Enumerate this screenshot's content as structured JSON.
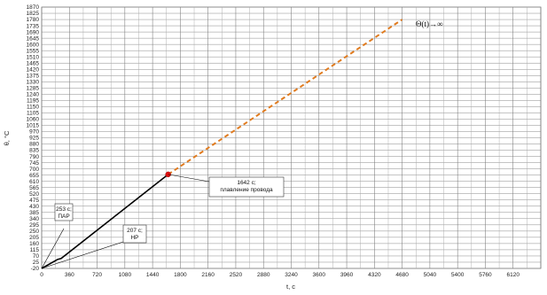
{
  "chart_data": {
    "type": "line",
    "title": "",
    "xlabel": "t, c",
    "ylabel": "θ, °C",
    "xlim": [
      0,
      6480
    ],
    "ylim": [
      -20,
      1870
    ],
    "x_ticks": [
      0,
      360,
      720,
      1080,
      1440,
      1800,
      2160,
      2520,
      2880,
      3240,
      3600,
      3960,
      4320,
      4680,
      5040,
      5400,
      5760,
      6120
    ],
    "y_ticks": [
      -20,
      25,
      70,
      115,
      160,
      205,
      250,
      295,
      340,
      385,
      430,
      475,
      520,
      565,
      610,
      655,
      700,
      745,
      790,
      835,
      880,
      925,
      970,
      1015,
      1060,
      1105,
      1150,
      1195,
      1240,
      1285,
      1330,
      1375,
      1420,
      1465,
      1510,
      1555,
      1600,
      1645,
      1690,
      1735,
      1780,
      1825,
      1870
    ],
    "grid": true,
    "series": [
      {
        "style": "solid",
        "color": "#000000",
        "x": [
          0,
          207,
          253,
          1642
        ],
        "y": [
          -20,
          45,
          52,
          660
        ]
      },
      {
        "style": "dashed",
        "color": "#E07B1F",
        "x": [
          1642,
          4680
        ],
        "y": [
          660,
          1780
        ]
      }
    ],
    "marker": {
      "x": 1642,
      "y": 660,
      "color": "#E01010"
    },
    "annotations": [
      {
        "id": "melt",
        "lines": [
          "1642 с;",
          "плавление провода"
        ],
        "x": 1642,
        "y": 660
      },
      {
        "id": "par",
        "lines": [
          "253 с;",
          "ПАР"
        ],
        "x": 253,
        "y": 52
      },
      {
        "id": "hr",
        "lines": [
          "207 с;",
          "НР"
        ],
        "x": 207,
        "y": 45
      },
      {
        "id": "asymptote",
        "lines": [
          "Θ(t)→∞"
        ],
        "x": 4680,
        "y": 1780
      }
    ]
  }
}
